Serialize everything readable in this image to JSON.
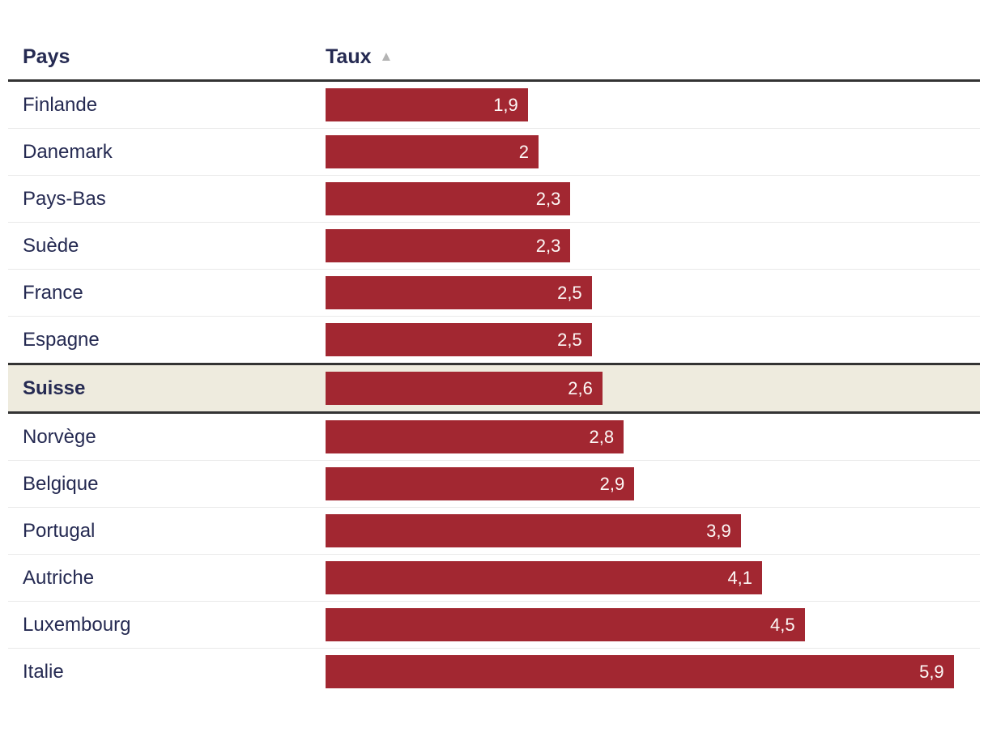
{
  "table": {
    "column_country_label": "Pays",
    "column_rate_label": "Taux",
    "sort_icon": "▲",
    "highlighted_category": "Suisse"
  },
  "colors": {
    "bar": "#a22731",
    "bar_value_text": "#fdf9f7",
    "row_text": "#252a52",
    "header_text": "#252a52",
    "header_rule": "#333333",
    "row_divider": "#e9e9e9",
    "highlight_background": "#eeebde",
    "highlight_border": "#333333",
    "sort_arrow": "#b4b4b4"
  },
  "chart_data": {
    "type": "bar",
    "title": "",
    "xlabel": "Taux",
    "ylabel": "Pays",
    "orientation": "horizontal",
    "xlim": [
      0,
      6.15
    ],
    "grid": false,
    "legend": "none",
    "categories": [
      "Finlande",
      "Danemark",
      "Pays-Bas",
      "Suède",
      "France",
      "Espagne",
      "Suisse",
      "Norvège",
      "Belgique",
      "Portugal",
      "Autriche",
      "Luxembourg",
      "Italie"
    ],
    "values": [
      1.9,
      2.0,
      2.3,
      2.3,
      2.5,
      2.5,
      2.6,
      2.8,
      2.9,
      3.9,
      4.1,
      4.5,
      5.9
    ],
    "value_labels": [
      "1,9",
      "2",
      "2,3",
      "2,3",
      "2,5",
      "2,5",
      "2,6",
      "2,8",
      "2,9",
      "3,9",
      "4,1",
      "4,5",
      "5,9"
    ],
    "highlighted_category": "Suisse"
  }
}
